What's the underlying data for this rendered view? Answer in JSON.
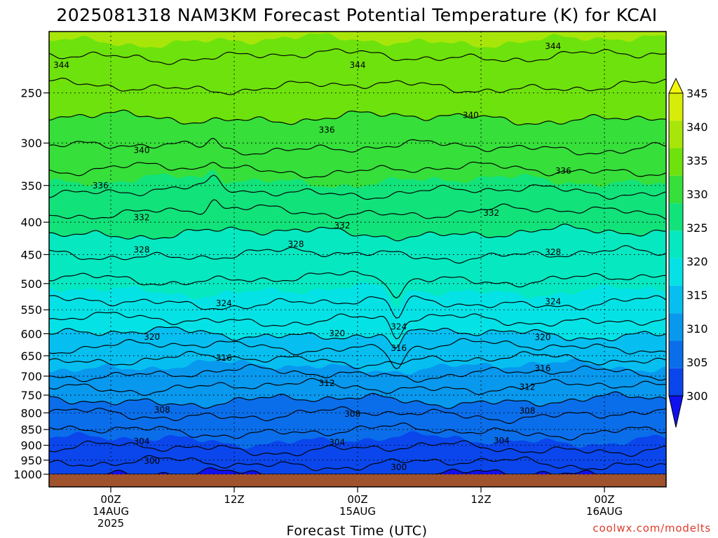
{
  "chart_data": {
    "type": "heatmap",
    "subtype": "filled-contour time-height cross section",
    "title": "2025081318 NAM3KM Forecast Potential Temperature (K) for KCAI",
    "xlabel": "Forecast Time (UTC)",
    "ylabel": "",
    "credit": "coolwx.com/modelts",
    "y_scale": "log",
    "y_reversed": true,
    "y_range_hpa": [
      1000,
      200
    ],
    "y_ticks": [
      250,
      300,
      350,
      400,
      450,
      500,
      550,
      600,
      650,
      700,
      750,
      800,
      850,
      900,
      950,
      1000
    ],
    "y_tick_labels": [
      "250",
      "300",
      "350",
      "400",
      "450",
      "500",
      "550",
      "600",
      "650",
      "700",
      "750",
      "800",
      "850",
      "900",
      "950",
      "1000"
    ],
    "x_range_hours": [
      18,
      78
    ],
    "x_ticks": [
      {
        "hour": 24,
        "lines": [
          "00Z",
          "14AUG",
          "2025"
        ]
      },
      {
        "hour": 36,
        "lines": [
          "12Z"
        ]
      },
      {
        "hour": 48,
        "lines": [
          "00Z",
          "15AUG"
        ]
      },
      {
        "hour": 60,
        "lines": [
          "12Z"
        ]
      },
      {
        "hour": 72,
        "lines": [
          "00Z",
          "16AUG"
        ]
      }
    ],
    "grid": "dotted",
    "colorbar": {
      "position": "right",
      "levels": [
        300,
        305,
        310,
        315,
        320,
        325,
        330,
        335,
        340,
        345
      ],
      "labels": [
        "300",
        "305",
        "310",
        "315",
        "320",
        "325",
        "330",
        "335",
        "340",
        "345"
      ],
      "colors": [
        "#1010f0",
        "#0a46eb",
        "#0a6eea",
        "#0898ee",
        "#06bff0",
        "#05e2e6",
        "#06e8c0",
        "#12e27a",
        "#36df3a",
        "#6ee20c",
        "#a8e60a",
        "#d8ec0a",
        "#f5f50c"
      ],
      "extend": "both"
    },
    "ground_color": "#a0522d",
    "theta_by_pressure": {
      "pressure_hpa": [
        1000,
        950,
        900,
        850,
        800,
        750,
        700,
        650,
        600,
        550,
        500,
        450,
        400,
        350,
        300,
        250,
        200
      ],
      "theta_k": [
        300.2,
        302.6,
        304.4,
        306.2,
        308.2,
        310.8,
        313.6,
        316.6,
        320.0,
        323.4,
        325.6,
        328.0,
        331.0,
        334.6,
        338.4,
        341.6,
        345.6
      ]
    },
    "contour_levels": [
      300,
      302,
      304,
      306,
      308,
      310,
      312,
      314,
      316,
      318,
      320,
      322,
      324,
      326,
      328,
      330,
      332,
      334,
      336,
      338,
      340,
      342,
      344
    ],
    "contour_labels": [
      {
        "text": "344",
        "hour": 19.2,
        "pressure": 226
      },
      {
        "text": "344",
        "hour": 48.0,
        "pressure": 226
      },
      {
        "text": "344",
        "hour": 67.0,
        "pressure": 211
      },
      {
        "text": "340",
        "hour": 27.0,
        "pressure": 308
      },
      {
        "text": "340",
        "hour": 59.0,
        "pressure": 271
      },
      {
        "text": "336",
        "hour": 23.0,
        "pressure": 350
      },
      {
        "text": "336",
        "hour": 45.0,
        "pressure": 286
      },
      {
        "text": "336",
        "hour": 68.0,
        "pressure": 332
      },
      {
        "text": "332",
        "hour": 27.0,
        "pressure": 393
      },
      {
        "text": "332",
        "hour": 46.5,
        "pressure": 405
      },
      {
        "text": "332",
        "hour": 61.0,
        "pressure": 387
      },
      {
        "text": "328",
        "hour": 27.0,
        "pressure": 442
      },
      {
        "text": "328",
        "hour": 42.0,
        "pressure": 433
      },
      {
        "text": "328",
        "hour": 67.0,
        "pressure": 446
      },
      {
        "text": "324",
        "hour": 35.0,
        "pressure": 537
      },
      {
        "text": "324",
        "hour": 52.0,
        "pressure": 585
      },
      {
        "text": "324",
        "hour": 67.0,
        "pressure": 534
      },
      {
        "text": "320",
        "hour": 28.0,
        "pressure": 607
      },
      {
        "text": "320",
        "hour": 46.0,
        "pressure": 599
      },
      {
        "text": "320",
        "hour": 66.0,
        "pressure": 608
      },
      {
        "text": "316",
        "hour": 35.0,
        "pressure": 655
      },
      {
        "text": "316",
        "hour": 52.0,
        "pressure": 632
      },
      {
        "text": "316",
        "hour": 66.0,
        "pressure": 681
      },
      {
        "text": "312",
        "hour": 45.0,
        "pressure": 718
      },
      {
        "text": "312",
        "hour": 64.5,
        "pressure": 728
      },
      {
        "text": "308",
        "hour": 29.0,
        "pressure": 791
      },
      {
        "text": "308",
        "hour": 47.5,
        "pressure": 803
      },
      {
        "text": "308",
        "hour": 64.5,
        "pressure": 794
      },
      {
        "text": "304",
        "hour": 27.0,
        "pressure": 887
      },
      {
        "text": "304",
        "hour": 46.0,
        "pressure": 891
      },
      {
        "text": "304",
        "hour": 62.0,
        "pressure": 885
      },
      {
        "text": "300",
        "hour": 28.0,
        "pressure": 953
      },
      {
        "text": "300",
        "hour": 52.0,
        "pressure": 975
      }
    ]
  }
}
